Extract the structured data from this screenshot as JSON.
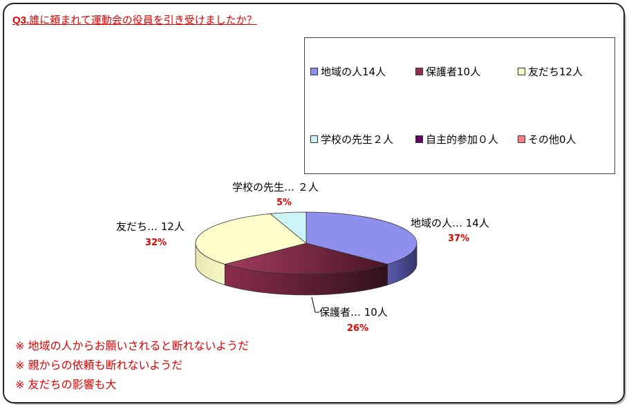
{
  "title": {
    "prefix": "Q3.",
    "text": "誰に頼まれて運動会の役員を引き受けましたか？"
  },
  "chart_data": {
    "type": "pie",
    "categories": [
      "地域の人",
      "保護者",
      "友だち",
      "学校の先生",
      "自主的参加",
      "その他"
    ],
    "values": [
      14,
      10,
      12,
      2,
      0,
      0
    ],
    "percent": [
      37,
      26,
      32,
      5,
      0,
      0
    ],
    "colors": [
      "#8f8fee",
      "#93304f",
      "#ffffcc",
      "#ccf3f5",
      "#660066",
      "#ff8080"
    ],
    "legend": [
      "地域の人14人",
      "保護者10人",
      "友だち12人",
      "学校の先生２人",
      "自主的参加０人",
      "その他0人"
    ],
    "legend_position": "top-right",
    "slice_labels": [
      {
        "name": "地域の人… 14人",
        "pct": "37%"
      },
      {
        "name": "保護者… 10人",
        "pct": "26%"
      },
      {
        "name": "友だち… 12人",
        "pct": "32%"
      },
      {
        "name": "学校の先生… ２人",
        "pct": "5%"
      }
    ]
  },
  "notes": [
    "※ 地域の人からお願いされると断れないようだ",
    "※ 親からの依頼も断れないようだ",
    "※ 友だちの影響も大"
  ]
}
